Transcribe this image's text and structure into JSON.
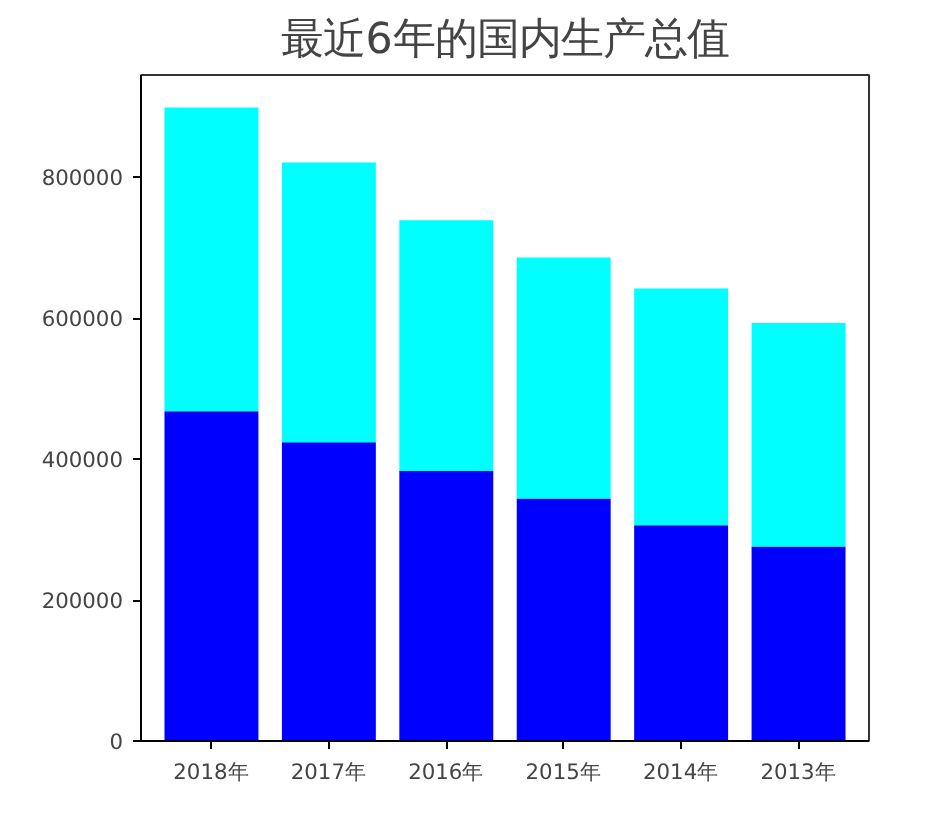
{
  "chart_data": {
    "type": "bar",
    "title": "最近6年的国内生产总值",
    "stacked": true,
    "categories": [
      "2018年",
      "2017年",
      "2016年",
      "2015年",
      "2014年",
      "2013年"
    ],
    "series": [
      {
        "color": "#0000ff",
        "values": [
          468000,
          424000,
          383000,
          344000,
          306000,
          276000
        ]
      },
      {
        "color": "#00ffff",
        "values": [
          431000,
          397000,
          356000,
          342000,
          336000,
          317000
        ]
      }
    ],
    "ylim": [
      0,
      945000
    ],
    "yticks": [
      0,
      200000,
      400000,
      600000,
      800000
    ],
    "grid": false
  }
}
